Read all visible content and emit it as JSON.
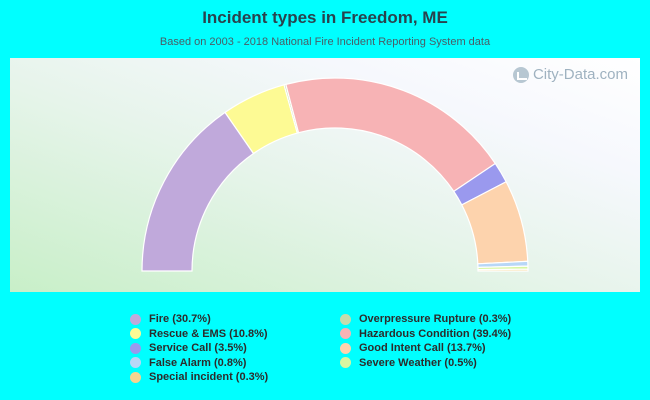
{
  "title": "Incident types in Freedom, ME",
  "subtitle": "Based on 2003 - 2018 National Fire Incident Reporting System data",
  "watermark": "City-Data.com",
  "chart_data": {
    "type": "donut-half",
    "title": "Incident types in Freedom, ME",
    "subtitle": "Based on 2003 - 2018 National Fire Incident Reporting System data",
    "series": [
      {
        "name": "Fire",
        "label": "Fire (30.7%)",
        "value": 30.7,
        "color": "#c0a9db"
      },
      {
        "name": "Rescue & EMS",
        "label": "Rescue & EMS (10.8%)",
        "value": 10.8,
        "color": "#fdfa94"
      },
      {
        "name": "Overpressure Rupture",
        "label": "Overpressure Rupture (0.3%)",
        "value": 0.3,
        "color": "#c6dcac"
      },
      {
        "name": "Hazardous Condition",
        "label": "Hazardous Condition (39.4%)",
        "value": 39.4,
        "color": "#f7b3b5"
      },
      {
        "name": "Service Call",
        "label": "Service Call (3.5%)",
        "value": 3.5,
        "color": "#9a99ee"
      },
      {
        "name": "Good Intent Call",
        "label": "Good Intent Call (13.7%)",
        "value": 13.7,
        "color": "#fdd3ad"
      },
      {
        "name": "False Alarm",
        "label": "False Alarm (0.8%)",
        "value": 0.8,
        "color": "#b8d7f7"
      },
      {
        "name": "Severe Weather",
        "label": "Severe Weather (0.5%)",
        "value": 0.5,
        "color": "#d7f6a2"
      },
      {
        "name": "Special incident",
        "label": "Special incident (0.3%)",
        "value": 0.3,
        "color": "#f7d48f"
      }
    ]
  },
  "legend": {
    "left": [
      {
        "label": "Fire (30.7%)",
        "color": "#c0a9db"
      },
      {
        "label": "Rescue & EMS (10.8%)",
        "color": "#fdfa94"
      },
      {
        "label": "Service Call (3.5%)",
        "color": "#9a99ee"
      },
      {
        "label": "False Alarm (0.8%)",
        "color": "#b8d7f7"
      },
      {
        "label": "Special incident (0.3%)",
        "color": "#f7d48f"
      }
    ],
    "right": [
      {
        "label": "Overpressure Rupture (0.3%)",
        "color": "#c6dcac"
      },
      {
        "label": "Hazardous Condition (39.4%)",
        "color": "#f7b3b5"
      },
      {
        "label": "Good Intent Call (13.7%)",
        "color": "#fdd3ad"
      },
      {
        "label": "Severe Weather (0.5%)",
        "color": "#d7f6a2"
      }
    ]
  }
}
